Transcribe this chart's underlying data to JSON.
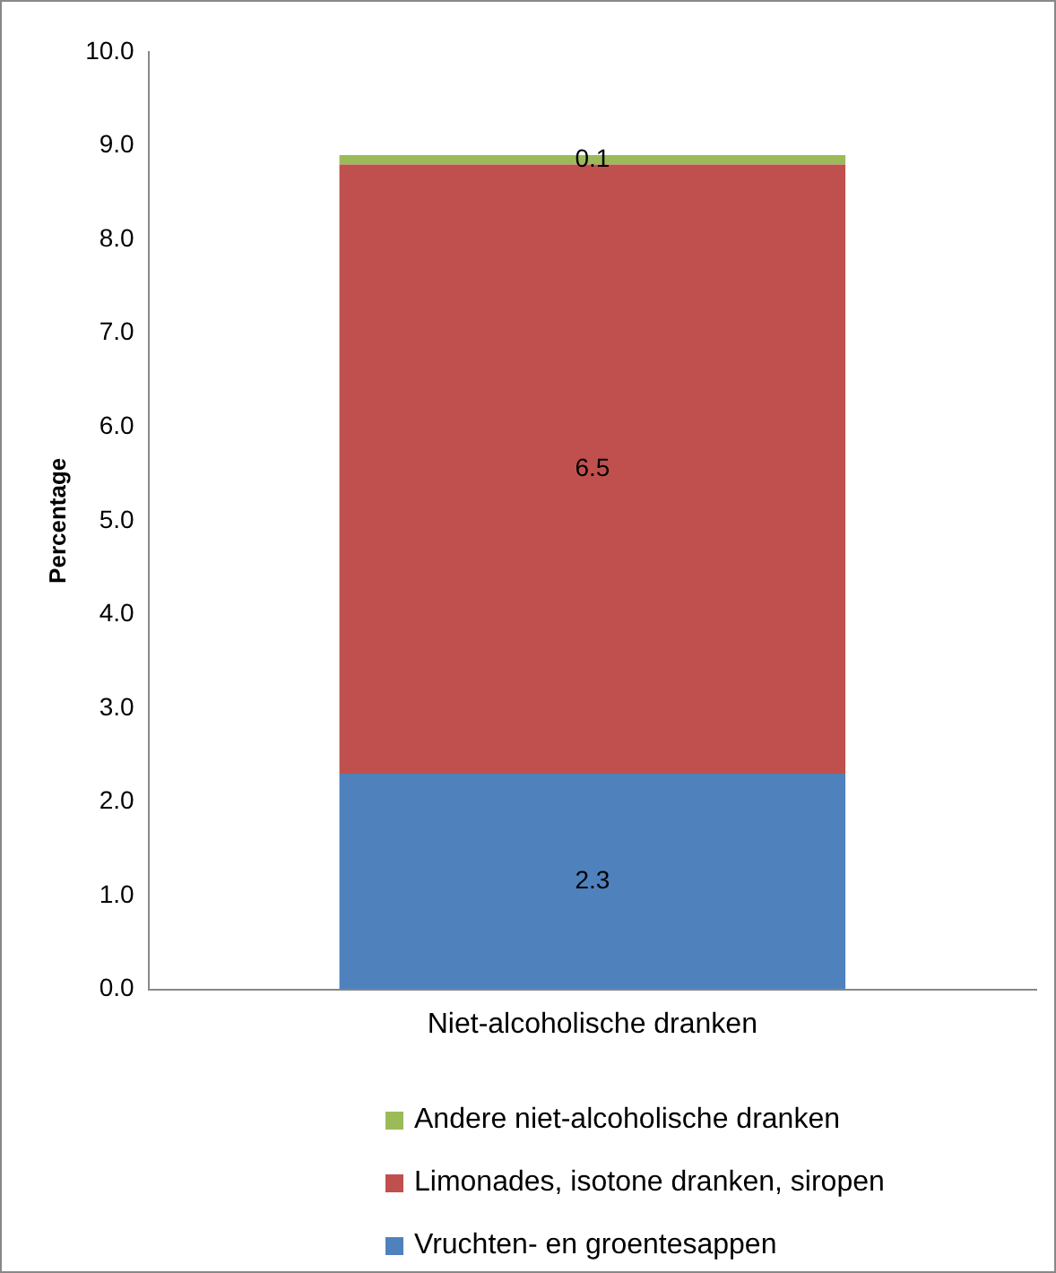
{
  "chart_data": {
    "type": "bar",
    "stacked": true,
    "categories": [
      "Niet-alcoholische dranken"
    ],
    "series": [
      {
        "name": "Vruchten- en groentesappen",
        "color": "#4f81bd",
        "values": [
          2.3
        ]
      },
      {
        "name": "Limonades, isotone dranken, siropen",
        "color": "#c0504d",
        "values": [
          6.5
        ]
      },
      {
        "name": "Andere niet-alcoholische dranken",
        "color": "#9bbb59",
        "values": [
          0.1
        ]
      }
    ],
    "ylabel": "Percentage",
    "ylim": [
      0,
      10
    ],
    "yticks": [
      {
        "value": 0,
        "label": "0.0"
      },
      {
        "value": 1,
        "label": "1.0"
      },
      {
        "value": 2,
        "label": "2.0"
      },
      {
        "value": 3,
        "label": "3.0"
      },
      {
        "value": 4,
        "label": "4.0"
      },
      {
        "value": 5,
        "label": "5.0"
      },
      {
        "value": 6,
        "label": "6.0"
      },
      {
        "value": 7,
        "label": "7.0"
      },
      {
        "value": 8,
        "label": "8.0"
      },
      {
        "value": 9,
        "label": "9.0"
      },
      {
        "value": 10,
        "label": "10.0"
      }
    ],
    "grid": false,
    "legend": "bottom",
    "data_labels": true
  }
}
